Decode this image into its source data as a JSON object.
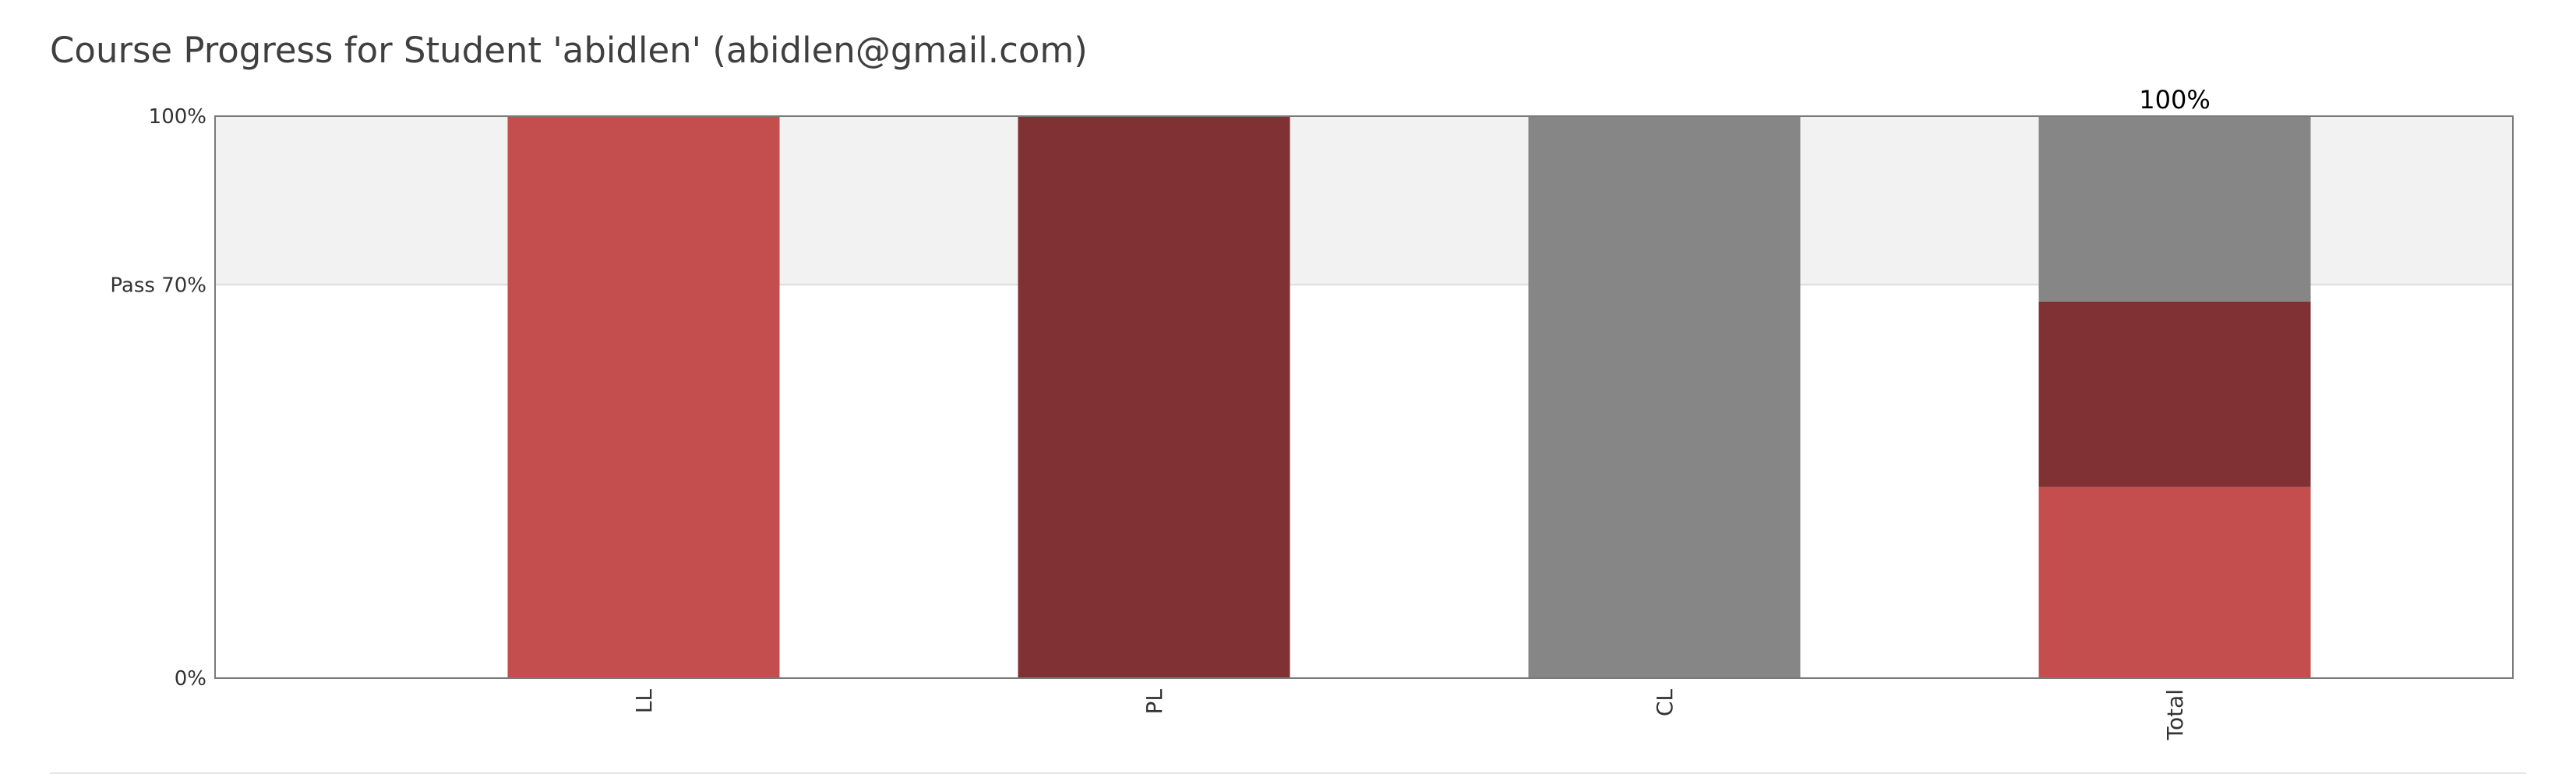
{
  "page": {
    "title": "Course Progress for Student 'abidlen' (abidlen@gmail.com)"
  },
  "chart_data": {
    "type": "bar",
    "stacked": true,
    "ylim": [
      0,
      100
    ],
    "pass_threshold": 70,
    "y_ticks": [
      {
        "value": 0,
        "label": "0%"
      },
      {
        "value": 70,
        "label": "Pass 70%"
      },
      {
        "value": 100,
        "label": "100%"
      }
    ],
    "categories": [
      "LL",
      "PL",
      "CL",
      "Total"
    ],
    "series": [
      {
        "values": [
          100,
          0,
          0,
          34
        ],
        "color": "#c44e4e"
      },
      {
        "values": [
          0,
          100,
          0,
          33
        ],
        "color": "#7f3134"
      },
      {
        "values": [
          0,
          0,
          100,
          33
        ],
        "color": "#868686"
      }
    ],
    "value_labels": [
      "",
      "",
      "",
      "100%"
    ],
    "pass_band_color": "#f2f2f2",
    "grid": false,
    "legend": "none"
  }
}
